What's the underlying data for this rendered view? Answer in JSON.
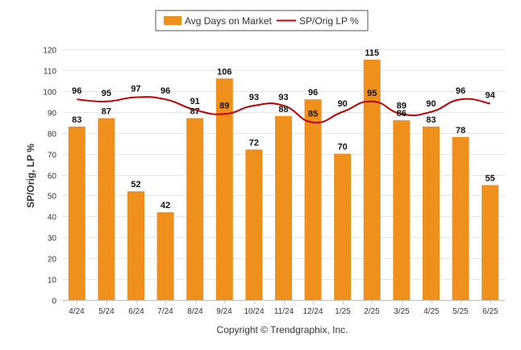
{
  "chart_data": {
    "type": "bar",
    "categories": [
      "4/24",
      "5/24",
      "6/24",
      "7/24",
      "8/24",
      "9/24",
      "10/24",
      "11/24",
      "12/24",
      "1/25",
      "2/25",
      "3/25",
      "4/25",
      "5/25",
      "6/25"
    ],
    "series": [
      {
        "name": "Avg Days on Market",
        "type": "bar",
        "color": "#f0901c",
        "values": [
          83,
          87,
          52,
          42,
          87,
          106,
          72,
          88,
          96,
          70,
          115,
          86,
          83,
          78,
          55
        ]
      },
      {
        "name": "SP/Orig LP %",
        "type": "line",
        "color": "#c00000",
        "values": [
          96,
          95,
          97,
          96,
          91,
          89,
          93,
          93,
          85,
          90,
          95,
          89,
          90,
          96,
          94
        ]
      }
    ],
    "ylabel": "SP/Orig, LP %",
    "ylim": [
      0,
      120
    ],
    "yticks": [
      0,
      10,
      20,
      30,
      40,
      50,
      60,
      70,
      80,
      90,
      100,
      110,
      120
    ],
    "grid": true,
    "legend_position": "top-center"
  },
  "credits": "Copyright © Trendgraphix, Inc."
}
